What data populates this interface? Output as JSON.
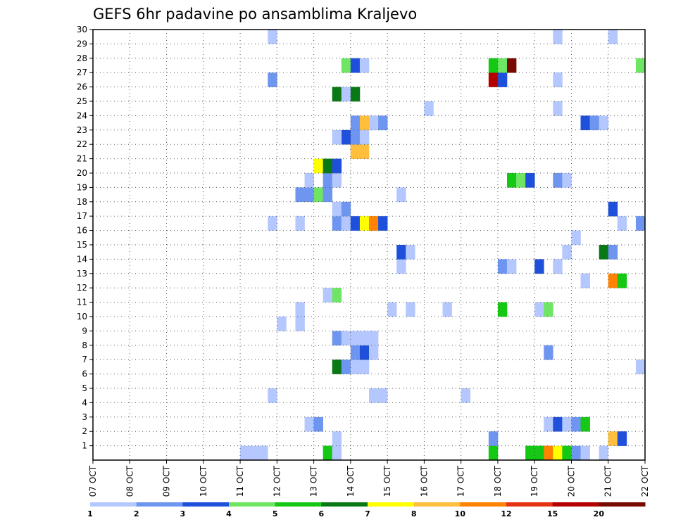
{
  "chart_data": {
    "type": "heatmap",
    "title": "GEFS 6hr padavine po ansamblima Kraljevo",
    "x_ticks": [
      "07 OCT",
      "08 OCT",
      "09 OCT",
      "10 OCT",
      "11 OCT",
      "12 OCT",
      "13 OCT",
      "14 OCT",
      "15 OCT",
      "16 OCT",
      "17 OCT",
      "18 OCT",
      "19 OCT",
      "20 OCT",
      "21 OCT",
      "22 OCT"
    ],
    "y_ticks": [
      "1",
      "2",
      "3",
      "4",
      "5",
      "6",
      "7",
      "8",
      "9",
      "10",
      "11",
      "12",
      "13",
      "14",
      "15",
      "16",
      "17",
      "18",
      "19",
      "20",
      "21",
      "22",
      "23",
      "24",
      "25",
      "26",
      "27",
      "28",
      "29",
      "30"
    ],
    "x_unit": "day",
    "xlim": [
      0,
      15
    ],
    "ylim": [
      0,
      30
    ],
    "grid": true,
    "colorbar": {
      "colors": [
        "#b4c8ff",
        "#6e96f0",
        "#1e50dc",
        "#6ee664",
        "#14c814",
        "#0a7814",
        "#ffff00",
        "#ffbe3c",
        "#ff8200",
        "#e63214",
        "#b40000",
        "#780a00"
      ],
      "labels": [
        "1",
        "2",
        "3",
        "4",
        "5",
        "6",
        "7",
        "8",
        "10",
        "12",
        "15",
        "20"
      ]
    },
    "cells": [
      {
        "x": 4.0,
        "y": 0,
        "c": 0
      },
      {
        "x": 4.25,
        "y": 0,
        "c": 0
      },
      {
        "x": 4.5,
        "y": 0,
        "c": 0
      },
      {
        "x": 6.25,
        "y": 0,
        "c": 4
      },
      {
        "x": 6.5,
        "y": 0,
        "c": 0
      },
      {
        "x": 10.75,
        "y": 0,
        "c": 4
      },
      {
        "x": 11.75,
        "y": 0,
        "c": 4
      },
      {
        "x": 12.0,
        "y": 0,
        "c": 4
      },
      {
        "x": 12.25,
        "y": 0,
        "c": 8
      },
      {
        "x": 12.5,
        "y": 0,
        "c": 6
      },
      {
        "x": 12.75,
        "y": 0,
        "c": 4
      },
      {
        "x": 13.0,
        "y": 0,
        "c": 1
      },
      {
        "x": 13.25,
        "y": 0,
        "c": 0
      },
      {
        "x": 13.75,
        "y": 0,
        "c": 0
      },
      {
        "x": 6.5,
        "y": 1,
        "c": 0
      },
      {
        "x": 10.75,
        "y": 1,
        "c": 1
      },
      {
        "x": 14.0,
        "y": 1,
        "c": 7
      },
      {
        "x": 14.25,
        "y": 1,
        "c": 2
      },
      {
        "x": 5.75,
        "y": 2,
        "c": 0
      },
      {
        "x": 6.0,
        "y": 2,
        "c": 1
      },
      {
        "x": 12.25,
        "y": 2,
        "c": 0
      },
      {
        "x": 12.5,
        "y": 2,
        "c": 2
      },
      {
        "x": 12.75,
        "y": 2,
        "c": 0
      },
      {
        "x": 13.0,
        "y": 2,
        "c": 1
      },
      {
        "x": 13.25,
        "y": 2,
        "c": 4
      },
      {
        "x": 4.75,
        "y": 4,
        "c": 0
      },
      {
        "x": 7.5,
        "y": 4,
        "c": 0
      },
      {
        "x": 7.75,
        "y": 4,
        "c": 0
      },
      {
        "x": 10.0,
        "y": 4,
        "c": 0
      },
      {
        "x": 6.5,
        "y": 6,
        "c": 5
      },
      {
        "x": 6.75,
        "y": 6,
        "c": 1
      },
      {
        "x": 7.0,
        "y": 6,
        "c": 0
      },
      {
        "x": 7.25,
        "y": 6,
        "c": 0
      },
      {
        "x": 14.75,
        "y": 6,
        "c": 0
      },
      {
        "x": 7.0,
        "y": 7,
        "c": 1
      },
      {
        "x": 7.25,
        "y": 7,
        "c": 2
      },
      {
        "x": 7.5,
        "y": 7,
        "c": 0
      },
      {
        "x": 12.25,
        "y": 7,
        "c": 1
      },
      {
        "x": 6.5,
        "y": 8,
        "c": 1
      },
      {
        "x": 6.75,
        "y": 8,
        "c": 0
      },
      {
        "x": 7.0,
        "y": 8,
        "c": 0
      },
      {
        "x": 7.25,
        "y": 8,
        "c": 0
      },
      {
        "x": 7.5,
        "y": 8,
        "c": 0
      },
      {
        "x": 5.0,
        "y": 9,
        "c": 0
      },
      {
        "x": 5.5,
        "y": 9,
        "c": 0
      },
      {
        "x": 5.5,
        "y": 10,
        "c": 0
      },
      {
        "x": 8.0,
        "y": 10,
        "c": 0
      },
      {
        "x": 8.5,
        "y": 10,
        "c": 0
      },
      {
        "x": 9.5,
        "y": 10,
        "c": 0
      },
      {
        "x": 11.0,
        "y": 10,
        "c": 4
      },
      {
        "x": 12.0,
        "y": 10,
        "c": 0
      },
      {
        "x": 12.25,
        "y": 10,
        "c": 3
      },
      {
        "x": 6.25,
        "y": 11,
        "c": 0
      },
      {
        "x": 6.5,
        "y": 11,
        "c": 3
      },
      {
        "x": 13.25,
        "y": 12,
        "c": 0
      },
      {
        "x": 14.0,
        "y": 12,
        "c": 8
      },
      {
        "x": 14.25,
        "y": 12,
        "c": 4
      },
      {
        "x": 8.25,
        "y": 13,
        "c": 0
      },
      {
        "x": 11.0,
        "y": 13,
        "c": 1
      },
      {
        "x": 11.25,
        "y": 13,
        "c": 0
      },
      {
        "x": 12.0,
        "y": 13,
        "c": 2
      },
      {
        "x": 12.5,
        "y": 13,
        "c": 0
      },
      {
        "x": 8.25,
        "y": 14,
        "c": 2
      },
      {
        "x": 8.5,
        "y": 14,
        "c": 0
      },
      {
        "x": 12.75,
        "y": 14,
        "c": 0
      },
      {
        "x": 13.75,
        "y": 14,
        "c": 5
      },
      {
        "x": 14.0,
        "y": 14,
        "c": 1
      },
      {
        "x": 13.0,
        "y": 15,
        "c": 0
      },
      {
        "x": 4.75,
        "y": 16,
        "c": 0
      },
      {
        "x": 5.5,
        "y": 16,
        "c": 0
      },
      {
        "x": 6.5,
        "y": 16,
        "c": 1
      },
      {
        "x": 6.75,
        "y": 16,
        "c": 0
      },
      {
        "x": 7.0,
        "y": 16,
        "c": 2
      },
      {
        "x": 7.25,
        "y": 16,
        "c": 6
      },
      {
        "x": 7.5,
        "y": 16,
        "c": 8
      },
      {
        "x": 7.75,
        "y": 16,
        "c": 2
      },
      {
        "x": 14.25,
        "y": 16,
        "c": 0
      },
      {
        "x": 14.75,
        "y": 16,
        "c": 1
      },
      {
        "x": 6.5,
        "y": 17,
        "c": 0
      },
      {
        "x": 6.75,
        "y": 17,
        "c": 1
      },
      {
        "x": 14.0,
        "y": 17,
        "c": 2
      },
      {
        "x": 5.5,
        "y": 18,
        "c": 1
      },
      {
        "x": 5.75,
        "y": 18,
        "c": 1
      },
      {
        "x": 6.0,
        "y": 18,
        "c": 3
      },
      {
        "x": 6.25,
        "y": 18,
        "c": 1
      },
      {
        "x": 8.25,
        "y": 18,
        "c": 0
      },
      {
        "x": 5.75,
        "y": 19,
        "c": 0
      },
      {
        "x": 6.25,
        "y": 19,
        "c": 1
      },
      {
        "x": 6.5,
        "y": 19,
        "c": 0
      },
      {
        "x": 11.25,
        "y": 19,
        "c": 4
      },
      {
        "x": 11.5,
        "y": 19,
        "c": 3
      },
      {
        "x": 11.75,
        "y": 19,
        "c": 2
      },
      {
        "x": 12.5,
        "y": 19,
        "c": 1
      },
      {
        "x": 12.75,
        "y": 19,
        "c": 0
      },
      {
        "x": 6.0,
        "y": 20,
        "c": 6
      },
      {
        "x": 6.25,
        "y": 20,
        "c": 5
      },
      {
        "x": 6.5,
        "y": 20,
        "c": 2
      },
      {
        "x": 7.0,
        "y": 21,
        "c": 7
      },
      {
        "x": 7.25,
        "y": 21,
        "c": 7
      },
      {
        "x": 6.75,
        "y": 22,
        "c": 2
      },
      {
        "x": 7.0,
        "y": 22,
        "c": 1
      },
      {
        "x": 6.5,
        "y": 22,
        "c": 0
      },
      {
        "x": 7.25,
        "y": 22,
        "c": 0
      },
      {
        "x": 7.0,
        "y": 23,
        "c": 1
      },
      {
        "x": 7.25,
        "y": 23,
        "c": 7
      },
      {
        "x": 7.5,
        "y": 23,
        "c": 0
      },
      {
        "x": 7.75,
        "y": 23,
        "c": 1
      },
      {
        "x": 13.25,
        "y": 23,
        "c": 2
      },
      {
        "x": 13.5,
        "y": 23,
        "c": 1
      },
      {
        "x": 13.75,
        "y": 23,
        "c": 0
      },
      {
        "x": 9.0,
        "y": 24,
        "c": 0
      },
      {
        "x": 12.5,
        "y": 24,
        "c": 0
      },
      {
        "x": 6.5,
        "y": 25,
        "c": 5
      },
      {
        "x": 6.75,
        "y": 25,
        "c": 0
      },
      {
        "x": 7.0,
        "y": 25,
        "c": 5
      },
      {
        "x": 4.75,
        "y": 26,
        "c": 1
      },
      {
        "x": 10.75,
        "y": 26,
        "c": 10
      },
      {
        "x": 11.0,
        "y": 26,
        "c": 2
      },
      {
        "x": 12.5,
        "y": 26,
        "c": 0
      },
      {
        "x": 6.75,
        "y": 27,
        "c": 3
      },
      {
        "x": 7.0,
        "y": 27,
        "c": 2
      },
      {
        "x": 7.25,
        "y": 27,
        "c": 0
      },
      {
        "x": 10.75,
        "y": 27,
        "c": 4
      },
      {
        "x": 11.0,
        "y": 27,
        "c": 3
      },
      {
        "x": 11.25,
        "y": 27,
        "c": 11
      },
      {
        "x": 14.75,
        "y": 27,
        "c": 3
      },
      {
        "x": 4.75,
        "y": 29,
        "c": 0
      },
      {
        "x": 12.5,
        "y": 29,
        "c": 0
      },
      {
        "x": 14.0,
        "y": 29,
        "c": 0
      }
    ]
  }
}
